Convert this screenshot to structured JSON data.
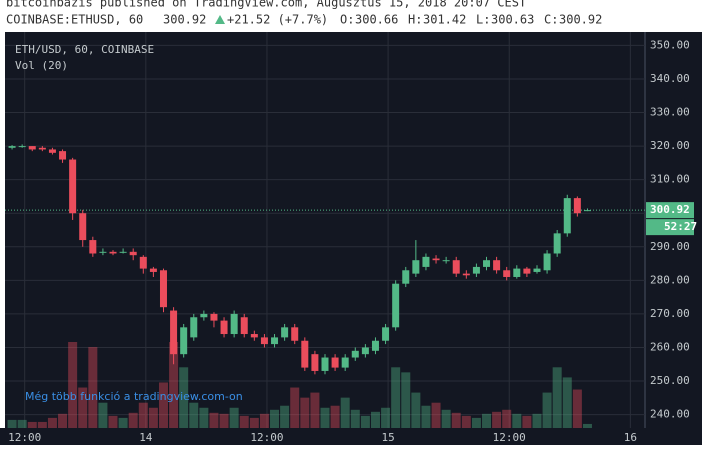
{
  "chart_data": {
    "type": "candlestick",
    "publisher_line": "bitcoinbazis published on TradingView.com, Augusztus 15, 2018 20:07 CEST",
    "symbol": "COINBASE:ETHUSD, 60",
    "last": "300.92",
    "change": "+21.52 (+7.7%)",
    "ohlc_labels": [
      "O:",
      "H:",
      "L:",
      "C:"
    ],
    "ohlc_values": [
      "300.66",
      "301.42",
      "300.63",
      "300.92"
    ],
    "legend_title": "ETH/USD, 60, COINBASE",
    "volume_title": "Vol (20)",
    "promo": "Még több funkció a tradingview.com-on",
    "price_label": {
      "value": 300.92,
      "label": "300.92"
    },
    "countdown": "52:27",
    "up_color": "#53b987",
    "down_color": "#eb4d5c",
    "ylim": [
      236,
      354
    ],
    "yticks": [
      {
        "value": 240,
        "label": "240.00"
      },
      {
        "value": 250,
        "label": "250.00"
      },
      {
        "value": 260,
        "label": "260.00"
      },
      {
        "value": 270,
        "label": "270.00"
      },
      {
        "value": 280,
        "label": "280.00"
      },
      {
        "value": 290,
        "label": "290.00"
      },
      {
        "value": 300,
        "label": "300.00"
      },
      {
        "value": 310,
        "label": "310.00"
      },
      {
        "value": 320,
        "label": "320.00"
      },
      {
        "value": 330,
        "label": "330.00"
      },
      {
        "value": 340,
        "label": "340.00"
      },
      {
        "value": 350,
        "label": "350.00"
      }
    ],
    "xlim": [
      -0.7,
      62.7
    ],
    "xticks": [
      {
        "value": 1.25,
        "label": "12:00"
      },
      {
        "value": 13.25,
        "label": "14"
      },
      {
        "value": 25.25,
        "label": "12:00"
      },
      {
        "value": 37.25,
        "label": "15"
      },
      {
        "value": 49.25,
        "label": "12:00"
      },
      {
        "value": 61.25,
        "label": "16"
      }
    ],
    "x": [
      0,
      1,
      2,
      3,
      4,
      5,
      6,
      7,
      8,
      9,
      10,
      11,
      12,
      13,
      14,
      15,
      16,
      17,
      18,
      19,
      20,
      21,
      22,
      23,
      24,
      25,
      26,
      27,
      28,
      29,
      30,
      31,
      32,
      33,
      34,
      35,
      36,
      37,
      38,
      39,
      40,
      41,
      42,
      43,
      44,
      45,
      46,
      47,
      48,
      49,
      50,
      51,
      52,
      53,
      54,
      55,
      56,
      57
    ],
    "open": [
      319.5,
      320,
      320,
      319.5,
      319,
      318.5,
      316,
      300,
      292,
      288.5,
      288.5,
      288.5,
      288.5,
      287,
      283.5,
      283,
      271,
      258,
      263,
      269,
      270,
      268,
      264,
      269,
      264,
      263,
      261,
      263,
      266,
      262,
      258,
      253,
      257,
      254,
      257,
      258,
      259,
      262,
      266,
      279,
      282,
      284,
      286.5,
      286,
      286,
      282,
      282,
      284,
      286,
      283,
      281,
      283.5,
      282.5,
      283,
      288,
      294,
      304.5,
      300.66
    ],
    "high": [
      320.3,
      320.5,
      320,
      320,
      319.5,
      319,
      316.5,
      301,
      293,
      289.5,
      289,
      289.5,
      289.5,
      287.5,
      284,
      283.5,
      272,
      267,
      270,
      271,
      270.5,
      269,
      271,
      270,
      265,
      264,
      264,
      267,
      267,
      263,
      259,
      258,
      258,
      258,
      260,
      261,
      263,
      267,
      280,
      284,
      292,
      288,
      287.5,
      287,
      287,
      283,
      285,
      287,
      287,
      284,
      284.5,
      284,
      284.5,
      289,
      295,
      305.5,
      305,
      301.42
    ],
    "low": [
      319,
      319.5,
      318.5,
      318.5,
      317.5,
      315,
      298,
      290,
      287,
      287.5,
      287.5,
      288,
      286,
      282,
      281,
      270.5,
      255,
      257,
      262,
      268,
      266,
      263,
      263,
      263,
      262,
      260,
      260,
      262,
      261,
      253,
      252,
      252,
      253,
      253,
      256,
      257,
      258,
      261,
      265,
      278,
      281,
      283,
      285,
      285,
      281,
      280.5,
      281,
      283,
      282,
      280,
      280.5,
      281,
      282,
      282,
      287,
      293,
      299,
      300.63
    ],
    "close": [
      320,
      320,
      319,
      319,
      318,
      316,
      300,
      292,
      288,
      288.5,
      288,
      288.5,
      287.5,
      283.5,
      282.5,
      272,
      258,
      266,
      269,
      270,
      268,
      264,
      270,
      264,
      263,
      261,
      263,
      266,
      262,
      254,
      253,
      257,
      254,
      257,
      259,
      260,
      262,
      266,
      279,
      283,
      286,
      287,
      286,
      286,
      282,
      281.5,
      284,
      286,
      283,
      281,
      283.5,
      282,
      283.5,
      288,
      294,
      304.5,
      300,
      300.92
    ],
    "volume": [
      8,
      8,
      6,
      6,
      10,
      14,
      85,
      40,
      80,
      25,
      12,
      10,
      15,
      25,
      20,
      45,
      85,
      60,
      25,
      20,
      15,
      14,
      20,
      12,
      10,
      14,
      18,
      22,
      40,
      30,
      35,
      20,
      22,
      30,
      18,
      12,
      16,
      20,
      60,
      55,
      35,
      22,
      25,
      18,
      15,
      12,
      10,
      14,
      16,
      18,
      14,
      12,
      14,
      35,
      60,
      50,
      38,
      4
    ]
  }
}
